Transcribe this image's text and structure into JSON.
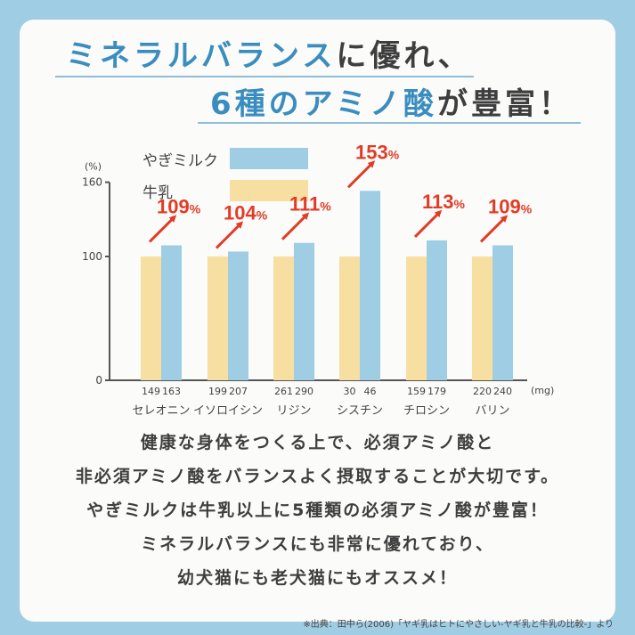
{
  "title": {
    "line1_blue": "ミネラルバランス",
    "line1_dark": "に優れ、",
    "line2_blue": "6種のアミノ酸",
    "line2_dark": "が豊富！"
  },
  "colors": {
    "goat": "#9ecde4",
    "cow": "#f7dfa2",
    "arrow": "#e23b26",
    "background": "#9fcde4"
  },
  "chart_data": {
    "type": "bar",
    "ylabel": "(%)",
    "xunit": "(mg)",
    "ylim": [
      0,
      160
    ],
    "yticks": [
      0,
      100,
      160
    ],
    "categories": [
      "セレオニン",
      "イソロイシン",
      "リジン",
      "シスチン",
      "チロシン",
      "バリン"
    ],
    "series": [
      {
        "name": "牛乳",
        "values": [
          100,
          100,
          100,
          100,
          100,
          100
        ],
        "mg": [
          "149",
          "199",
          "261",
          "30",
          "159",
          "220"
        ]
      },
      {
        "name": "やぎミルク",
        "values": [
          109,
          104,
          111,
          153,
          113,
          109
        ],
        "mg": [
          "163",
          "207",
          "290",
          "46",
          "179",
          "240"
        ]
      }
    ],
    "annotations": [
      "109%",
      "104%",
      "111%",
      "153%",
      "113%",
      "109%"
    ],
    "legend": {
      "placement": "top-left"
    }
  },
  "body": {
    "lines": [
      "健康な身体をつくる上で、必須アミノ酸と",
      "非必須アミノ酸をバランスよく摂取することが大切です。",
      "やぎミルクは牛乳以上に5種類の必須アミノ酸が豊富！",
      "ミネラルバランスにも非常に優れており、",
      "幼犬猫にも老犬猫にもオススメ！"
    ]
  },
  "source": "※出典：田中ら(2006)「ヤギ乳はヒトにやさしい-ヤギ乳と牛乳の比較-」より"
}
